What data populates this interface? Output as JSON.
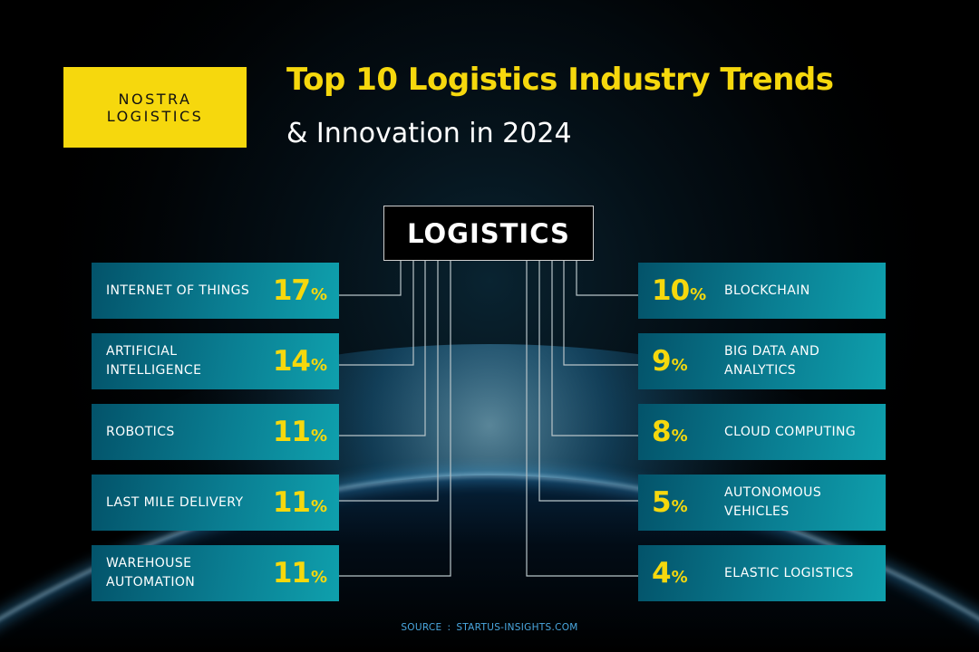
{
  "brand": {
    "logo_line1": "NOSTRA",
    "logo_line2": "LOGISTICS"
  },
  "title": "Top 10 Logistics Industry Trends",
  "subtitle": "& Innovation in 2024",
  "hub_label": "LOGISTICS",
  "trends_left": [
    {
      "label": "INTERNET OF THINGS",
      "value": "17",
      "unit": "%"
    },
    {
      "label": "ARTIFICIAL\nINTELLIGENCE",
      "value": "14",
      "unit": "%"
    },
    {
      "label": "ROBOTICS",
      "value": "11",
      "unit": "%"
    },
    {
      "label": "LAST MILE DELIVERY",
      "value": "11",
      "unit": "%"
    },
    {
      "label": "WAREHOUSE\nAUTOMATION",
      "value": "11",
      "unit": "%"
    }
  ],
  "trends_right": [
    {
      "label": "BLOCKCHAIN",
      "value": "10",
      "unit": "%"
    },
    {
      "label": "BIG DATA AND\nANALYTICS",
      "value": "9",
      "unit": "%"
    },
    {
      "label": "CLOUD COMPUTING",
      "value": "8",
      "unit": "%"
    },
    {
      "label": "AUTONOMOUS\nVEHICLES",
      "value": "5",
      "unit": "%"
    },
    {
      "label": "ELASTIC LOGISTICS",
      "value": "4",
      "unit": "%"
    }
  ],
  "source": {
    "label": "SOURCE",
    "separator": ":",
    "value": "STARTUS-INSIGHTS.COM"
  },
  "colors": {
    "background": "#000000",
    "brand_yellow": "#f6d80d",
    "card_teal": "#0a7e92",
    "connector": "#b8c4c8",
    "source_blue": "#4aa8e0"
  }
}
